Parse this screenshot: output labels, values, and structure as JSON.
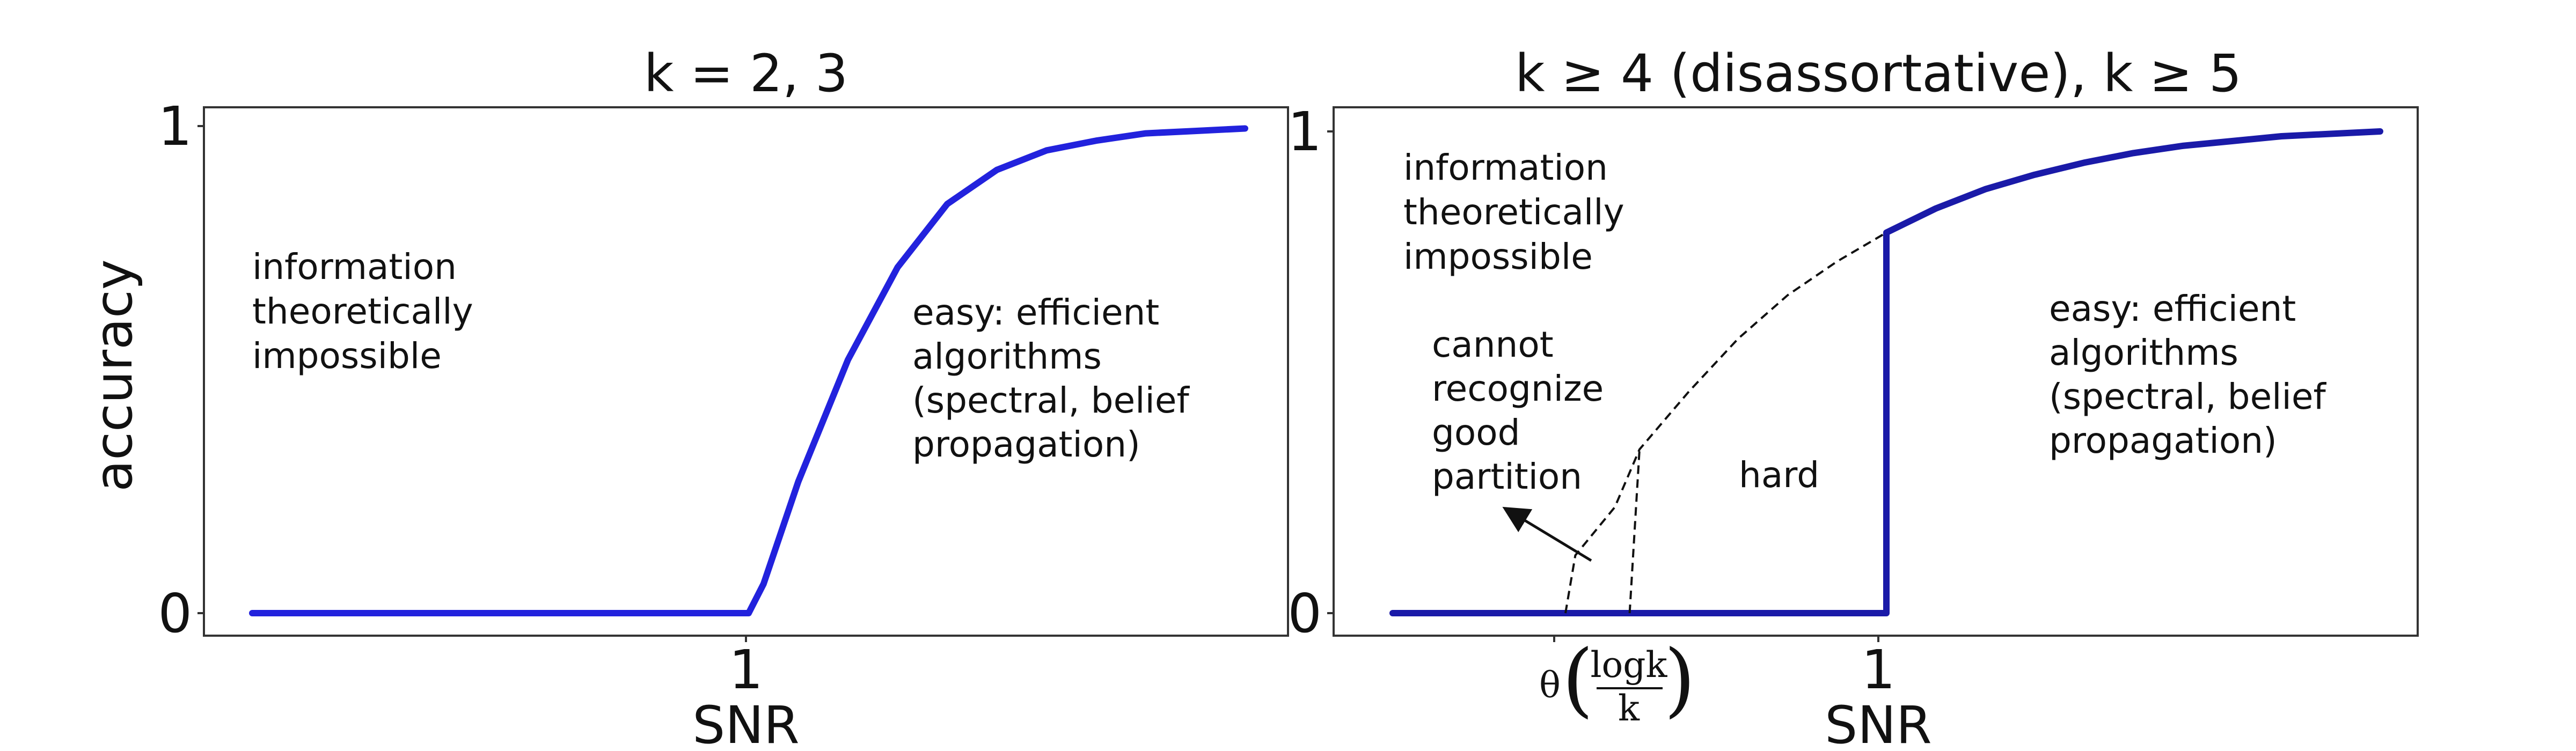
{
  "chart_data": [
    {
      "type": "line",
      "title": "k = 2, 3",
      "xlabel": "SNR",
      "ylabel": "accuracy",
      "ylim": [
        0,
        1
      ],
      "xlim": [
        0,
        2
      ],
      "x_ticks": [
        "1"
      ],
      "y_ticks": [
        "0",
        "1"
      ],
      "grid": false,
      "series": [
        {
          "color": "#2222dd",
          "points": [
            [
              0.0,
              0.0
            ],
            [
              0.5,
              0.0
            ],
            [
              0.98,
              0.0
            ],
            [
              1.0,
              0.0
            ],
            [
              1.03,
              0.06
            ],
            [
              1.1,
              0.27
            ],
            [
              1.2,
              0.52
            ],
            [
              1.3,
              0.71
            ],
            [
              1.4,
              0.84
            ],
            [
              1.5,
              0.91
            ],
            [
              1.6,
              0.95
            ],
            [
              1.7,
              0.97
            ],
            [
              1.8,
              0.985
            ],
            [
              1.9,
              0.99
            ],
            [
              2.0,
              0.995
            ]
          ]
        }
      ],
      "annotations": [
        {
          "text": [
            "information",
            "theoretically",
            "impossible"
          ]
        },
        {
          "text": [
            "easy: efficient",
            "algorithms",
            "(spectral, belief",
            "propagation)"
          ]
        }
      ]
    },
    {
      "type": "line",
      "title": "k ≥ 4 (disassortative), k ≥ 5",
      "xlabel": "SNR",
      "ylabel": "",
      "ylim": [
        0,
        1
      ],
      "xlim": [
        0,
        2
      ],
      "x_ticks": [
        "θ(log k / k)",
        "1"
      ],
      "y_ticks": [
        "0",
        "1"
      ],
      "grid": false,
      "series": [
        {
          "color": "#1a1aa8",
          "style": "solid",
          "points": [
            [
              0.0,
              0.0
            ],
            [
              0.5,
              0.0
            ],
            [
              1.0,
              0.0
            ],
            [
              1.0,
              0.79
            ],
            [
              1.1,
              0.84
            ],
            [
              1.2,
              0.88
            ],
            [
              1.3,
              0.91
            ],
            [
              1.4,
              0.935
            ],
            [
              1.5,
              0.955
            ],
            [
              1.6,
              0.97
            ],
            [
              1.7,
              0.98
            ],
            [
              1.8,
              0.99
            ],
            [
              1.9,
              0.995
            ],
            [
              2.0,
              1.0
            ]
          ]
        },
        {
          "color": "#111111",
          "style": "dashed",
          "points": [
            [
              0.35,
              0.0
            ],
            [
              0.37,
              0.12
            ],
            [
              0.45,
              0.22
            ],
            [
              0.5,
              0.34
            ],
            [
              0.6,
              0.46
            ],
            [
              0.7,
              0.57
            ],
            [
              0.8,
              0.66
            ],
            [
              0.9,
              0.73
            ],
            [
              1.0,
              0.79
            ]
          ]
        },
        {
          "color": "#111111",
          "style": "dashed",
          "points": [
            [
              0.48,
              0.0
            ],
            [
              0.5,
              0.34
            ]
          ]
        }
      ],
      "annotations": [
        {
          "text": [
            "information",
            "theoretically",
            "impossible"
          ]
        },
        {
          "text": [
            "cannot",
            "recognize",
            "good",
            "partition"
          ]
        },
        {
          "text": [
            "hard"
          ]
        },
        {
          "text": [
            "easy: efficient",
            "algorithms",
            "(spectral, belief",
            "propagation)"
          ]
        }
      ]
    }
  ],
  "theta_label": {
    "prefix": "θ",
    "numerator": "logk",
    "denominator": "k"
  }
}
